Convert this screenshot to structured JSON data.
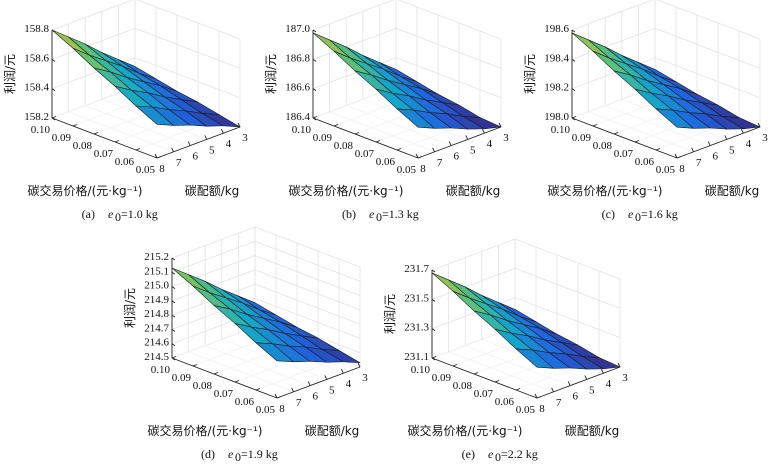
{
  "chart_data": [
    {
      "type": "surface3d",
      "caption": {
        "tag": "(a)",
        "var": "e",
        "sub": "0",
        "value": "=1.0 kg"
      },
      "zlabel": "利润/元",
      "ylabel": "碳交易价格/(元·kg⁻¹)",
      "xlabel": "碳配额/kg",
      "zlim": [
        158.2,
        158.8
      ],
      "zticks": [
        "158.2",
        "158.4",
        "158.6",
        "158.8"
      ],
      "price": [
        0.05,
        0.06,
        0.07,
        0.08,
        0.09,
        0.1
      ],
      "price_ticks": [
        "0.05",
        "0.06",
        "0.07",
        "0.08",
        "0.09",
        "0.10"
      ],
      "quota": [
        3,
        4,
        5,
        6,
        7,
        8
      ],
      "quota_ticks": [
        "3",
        "4",
        "5",
        "6",
        "7",
        "8"
      ],
      "z": [
        [
          158.2,
          158.25,
          158.29,
          158.34,
          158.38,
          158.43
        ],
        [
          158.23,
          158.28,
          158.34,
          158.39,
          158.45,
          158.5
        ],
        [
          158.26,
          158.32,
          158.38,
          158.45,
          158.51,
          158.58
        ],
        [
          158.28,
          158.36,
          158.43,
          158.5,
          158.58,
          158.65
        ],
        [
          158.31,
          158.39,
          158.48,
          158.56,
          158.64,
          158.73
        ],
        [
          158.34,
          158.43,
          158.52,
          158.62,
          158.71,
          158.8
        ]
      ]
    },
    {
      "type": "surface3d",
      "caption": {
        "tag": "(b)",
        "var": "e",
        "sub": "0",
        "value": "=1.3 kg"
      },
      "zlabel": "利润/元",
      "ylabel": "碳交易价格/(元·kg⁻¹)",
      "xlabel": "碳配额/kg",
      "zlim": [
        186.4,
        187.0
      ],
      "zticks": [
        "186.4",
        "186.6",
        "186.8",
        "187.0"
      ],
      "price": [
        0.05,
        0.06,
        0.07,
        0.08,
        0.09,
        0.1
      ],
      "price_ticks": [
        "0.05",
        "0.06",
        "0.07",
        "0.08",
        "0.09",
        "0.10"
      ],
      "quota": [
        3,
        4,
        5,
        6,
        7,
        8
      ],
      "quota_ticks": [
        "3",
        "4",
        "5",
        "6",
        "7",
        "8"
      ],
      "z": [
        [
          186.4,
          186.43,
          186.47,
          186.52,
          186.56,
          186.61
        ],
        [
          186.41,
          186.46,
          186.52,
          186.57,
          186.63,
          186.68
        ],
        [
          186.44,
          186.5,
          186.56,
          186.63,
          186.69,
          186.76
        ],
        [
          186.46,
          186.54,
          186.61,
          186.68,
          186.76,
          186.83
        ],
        [
          186.49,
          186.57,
          186.66,
          186.74,
          186.82,
          186.91
        ],
        [
          186.52,
          186.61,
          186.7,
          186.8,
          186.89,
          186.98
        ]
      ]
    },
    {
      "type": "surface3d",
      "caption": {
        "tag": "(c)",
        "var": "e",
        "sub": "0",
        "value": "=1.6 kg"
      },
      "zlabel": "利润/元",
      "ylabel": "碳交易价格/(元·kg⁻¹)",
      "xlabel": "碳配额/kg",
      "zlim": [
        198.0,
        198.6
      ],
      "zticks": [
        "198.0",
        "198.2",
        "198.4",
        "198.6"
      ],
      "price": [
        0.05,
        0.06,
        0.07,
        0.08,
        0.09,
        0.1
      ],
      "price_ticks": [
        "0.05",
        "0.06",
        "0.07",
        "0.08",
        "0.09",
        "0.10"
      ],
      "quota": [
        3,
        4,
        5,
        6,
        7,
        8
      ],
      "quota_ticks": [
        "3",
        "4",
        "5",
        "6",
        "7",
        "8"
      ],
      "z": [
        [
          198.0,
          198.03,
          198.07,
          198.12,
          198.16,
          198.21
        ],
        [
          198.01,
          198.06,
          198.12,
          198.17,
          198.23,
          198.28
        ],
        [
          198.04,
          198.1,
          198.16,
          198.23,
          198.29,
          198.36
        ],
        [
          198.06,
          198.14,
          198.21,
          198.28,
          198.36,
          198.43
        ],
        [
          198.09,
          198.17,
          198.26,
          198.34,
          198.42,
          198.51
        ],
        [
          198.12,
          198.21,
          198.3,
          198.4,
          198.49,
          198.58
        ]
      ]
    },
    {
      "type": "surface3d",
      "caption": {
        "tag": "(d)",
        "var": "e",
        "sub": "0",
        "value": "=1.9 kg"
      },
      "zlabel": "利润/元",
      "ylabel": "碳交易价格/(元·kg⁻¹)",
      "xlabel": "碳配额/kg",
      "zlim": [
        214.5,
        215.2
      ],
      "zticks": [
        "214.5",
        "214.6",
        "214.7",
        "214.8",
        "214.9",
        "215.0",
        "215.1",
        "215.2"
      ],
      "price": [
        0.05,
        0.06,
        0.07,
        0.08,
        0.09,
        0.1
      ],
      "price_ticks": [
        "0.05",
        "0.06",
        "0.07",
        "0.08",
        "0.09",
        "0.10"
      ],
      "quota": [
        3,
        4,
        5,
        6,
        7,
        8
      ],
      "quota_ticks": [
        "3",
        "4",
        "5",
        "6",
        "7",
        "8"
      ],
      "z": [
        [
          214.53,
          214.58,
          214.62,
          214.67,
          214.71,
          214.76
        ],
        [
          214.56,
          214.61,
          214.67,
          214.72,
          214.78,
          214.83
        ],
        [
          214.59,
          214.65,
          214.71,
          214.78,
          214.84,
          214.91
        ],
        [
          214.61,
          214.69,
          214.76,
          214.83,
          214.91,
          214.98
        ],
        [
          214.64,
          214.72,
          214.81,
          214.89,
          214.97,
          215.06
        ],
        [
          214.67,
          214.76,
          214.85,
          214.95,
          215.04,
          215.13
        ]
      ]
    },
    {
      "type": "surface3d",
      "caption": {
        "tag": "(e)",
        "var": "e",
        "sub": "0",
        "value": "=2.2 kg"
      },
      "zlabel": "利润/元",
      "ylabel": "碳交易价格/(元·kg⁻¹)",
      "xlabel": "碳配额/kg",
      "zlim": [
        231.1,
        231.7
      ],
      "zticks": [
        "231.1",
        "231.3",
        "231.5",
        "231.7"
      ],
      "price": [
        0.05,
        0.06,
        0.07,
        0.08,
        0.09,
        0.1
      ],
      "price_ticks": [
        "0.05",
        "0.06",
        "0.07",
        "0.08",
        "0.09",
        "0.10"
      ],
      "quota": [
        3,
        4,
        5,
        6,
        7,
        8
      ],
      "quota_ticks": [
        "3",
        "4",
        "5",
        "6",
        "7",
        "8"
      ],
      "z": [
        [
          231.1,
          231.13,
          231.17,
          231.22,
          231.26,
          231.31
        ],
        [
          231.11,
          231.16,
          231.22,
          231.27,
          231.33,
          231.38
        ],
        [
          231.14,
          231.2,
          231.26,
          231.33,
          231.39,
          231.46
        ],
        [
          231.16,
          231.24,
          231.31,
          231.38,
          231.46,
          231.53
        ],
        [
          231.19,
          231.27,
          231.36,
          231.44,
          231.52,
          231.61
        ],
        [
          231.22,
          231.31,
          231.4,
          231.5,
          231.59,
          231.68
        ]
      ]
    }
  ]
}
